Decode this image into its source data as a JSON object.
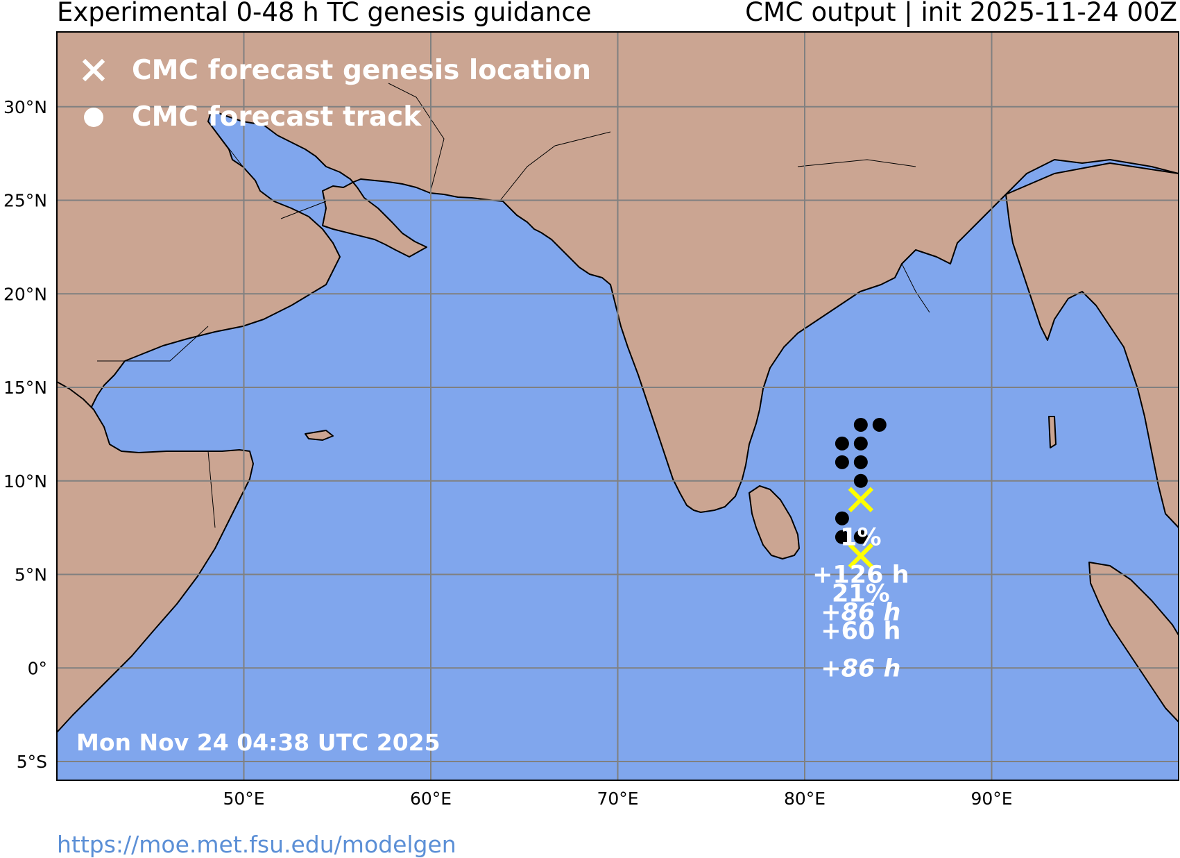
{
  "header": {
    "left_title": "Experimental 0-48 h TC genesis guidance",
    "right_title": "CMC output | init 2025-11-24 00Z"
  },
  "legend": {
    "genesis_label": "CMC forecast genesis location",
    "track_label": "CMC forecast track",
    "genesis_icon": "x-marker-icon",
    "track_icon": "filled-circle-icon"
  },
  "map": {
    "extent": {
      "lon": [
        40,
        100
      ],
      "lat": [
        -6,
        34
      ]
    },
    "lon_ticks": [
      {
        "value": 50,
        "label": "50°E"
      },
      {
        "value": 60,
        "label": "60°E"
      },
      {
        "value": 70,
        "label": "70°E"
      },
      {
        "value": 80,
        "label": "80°E"
      },
      {
        "value": 90,
        "label": "90°E"
      }
    ],
    "lat_ticks": [
      {
        "value": 30,
        "label": "30°N"
      },
      {
        "value": 25,
        "label": "25°N"
      },
      {
        "value": 20,
        "label": "20°N"
      },
      {
        "value": 15,
        "label": "15°N"
      },
      {
        "value": 10,
        "label": "10°N"
      },
      {
        "value": 5,
        "label": "5°N"
      },
      {
        "value": 0,
        "label": "0°"
      },
      {
        "value": -5,
        "label": "5°S"
      }
    ],
    "gridlines": true,
    "colors": {
      "ocean": "#80a6ed",
      "land": "#cba592",
      "coast": "#000000",
      "grid": "#808080",
      "genesis_marker": "#ffff00",
      "track_marker": "#000000",
      "annotation_text": "#ffffff"
    },
    "track_points": [
      {
        "lon": 83.0,
        "lat": 13.0
      },
      {
        "lon": 84.0,
        "lat": 13.0
      },
      {
        "lon": 82.0,
        "lat": 12.0
      },
      {
        "lon": 83.0,
        "lat": 12.0
      },
      {
        "lon": 82.0,
        "lat": 11.0
      },
      {
        "lon": 83.0,
        "lat": 11.0
      },
      {
        "lon": 83.0,
        "lat": 10.0
      },
      {
        "lon": 82.0,
        "lat": 8.0
      },
      {
        "lon": 82.0,
        "lat": 7.0
      },
      {
        "lon": 83.0,
        "lat": 7.0
      }
    ],
    "genesis_points": [
      {
        "lon": 83.0,
        "lat": 9.0
      },
      {
        "lon": 83.0,
        "lat": 6.0
      }
    ],
    "annotations": [
      {
        "text": "1%",
        "lon": 83.0,
        "lat": 7.0,
        "italic": false
      },
      {
        "text": "+126 h",
        "lon": 83.0,
        "lat": 5.0,
        "italic": false
      },
      {
        "text": "21%",
        "lon": 83.0,
        "lat": 4.0,
        "italic": false
      },
      {
        "text": "+86 h",
        "lon": 83.0,
        "lat": 3.0,
        "italic": true
      },
      {
        "text": "+60 h",
        "lon": 83.0,
        "lat": 2.0,
        "italic": false
      },
      {
        "text": "+86 h",
        "lon": 83.0,
        "lat": 0.0,
        "italic": true
      }
    ]
  },
  "timestamp": "Mon Nov 24 04:38 UTC 2025",
  "footer_url": "https://moe.met.fsu.edu/modelgen"
}
